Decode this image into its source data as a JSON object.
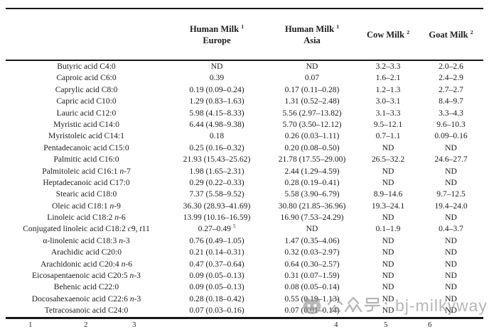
{
  "table": {
    "header": [
      {
        "name": "fatty-acid",
        "lines": []
      },
      {
        "name": "human-milk-europe",
        "lines": [
          "Human Milk ^1^",
          "Europe"
        ]
      },
      {
        "name": "human-milk-asia",
        "lines": [
          "Human Milk ^1^",
          "Asia"
        ]
      },
      {
        "name": "cow-milk",
        "lines": [
          "Cow Milk ^2^"
        ]
      },
      {
        "name": "goat-milk",
        "lines": [
          "Goat Milk ^2^"
        ]
      }
    ],
    "rows": [
      [
        "Butyric acid C4:0",
        "ND",
        "ND",
        "3.2–3.3",
        "2.0–2.6"
      ],
      [
        "Caproic acid C6:0",
        "0.39",
        "0.07",
        "1.6–2.1",
        "2.4–2.9"
      ],
      [
        "Caprylic acid C8:0",
        "0.19 (0.09–0.24)",
        "0.17 (0.11–0.28)",
        "1.2–1.3",
        "2.7–2.7"
      ],
      [
        "Capric acid C10:0",
        "1.29 (0.83–1.63)",
        "1.31 (0.52–2.48)",
        "3.0–3.1",
        "8.4–9.7"
      ],
      [
        "Lauric acid C12:0",
        "5.98 (4.15–8.33)",
        "5.56 (2.97–13.82)",
        "3.1–3.3",
        "3.3–4.3"
      ],
      [
        "Myristic acid C14:0",
        "6.44 (4.98–9.38)",
        "5.70 (3.50–12.12)",
        "9.5–12.1",
        "9.6–10.3"
      ],
      [
        "Myristoleic acid C14:1",
        "0.18",
        "0.26 (0.03–1.11)",
        "0.7–1.1",
        "0.09–0.16"
      ],
      [
        "Pentadecanoic acid C15:0",
        "0.25 (0.16–0.32)",
        "0.20 (0.08–0.50)",
        "ND",
        "ND"
      ],
      [
        "Palmitic acid C16:0",
        "21.93 (15.43–25.62)",
        "21.78 (17.55–29.00)",
        "26.5–32.2",
        "24.6–27.7"
      ],
      [
        "Palmitoleic acid C16:1 *n*-7",
        "1.98 (1.65–2.31)",
        "2.44 (1.29–4.59)",
        "ND",
        "ND"
      ],
      [
        "Heptadecanoic acid C17:0",
        "0.29 (0.22–0.33)",
        "0.28 (0.19–0.41)",
        "ND",
        "ND"
      ],
      [
        "Stearic acid C18:0",
        "7.37 (5.58–9.52)",
        "5.58 (3.90–6.79)",
        "8.9–14.6",
        "9.7–12.5"
      ],
      [
        "Oleic acid C18:1 *n*-9",
        "36.30 (28.93–41.69)",
        "30.80 (21.85–36.96)",
        "19.3–24.1",
        "19.4–24.0"
      ],
      [
        "Linoleic acid C18:2 *n*-6",
        "13.99 (10.16–16.59)",
        "16.90 (7.53–24.29)",
        "ND",
        "ND"
      ],
      [
        "Conjugated linoleic acid C18:2 *c*9, *t*11",
        "0.27–0.49 ^5^",
        "ND",
        "0.1–1.9",
        "0.4–3.7"
      ],
      [
        "α-linolenic acid C18:3 *n*-3",
        "0.76 (0.49–1.05)",
        "1.47 (0.35–4.06)",
        "ND",
        "ND"
      ],
      [
        "Arachidic acid C20:0",
        "0.21 (0.14–0.31)",
        "0.32 (0.03–2.97)",
        "ND",
        "ND"
      ],
      [
        "Arachidonic acid C20:4 *n*-6",
        "0.47 (0.37–0.64)",
        "0.64 (0.30–2.57)",
        "ND",
        "ND"
      ],
      [
        "Eicosapentaenoic acid C20:5 *n*-3",
        "0.09 (0.05–0.13)",
        "0.31 (0.07–1.59)",
        "ND",
        "ND"
      ],
      [
        "Behenic acid C22:0",
        "0.09 (0.05–0.13)",
        "0.08 (0.05–0.14)",
        "ND",
        "ND"
      ],
      [
        "Docosahexaenoic acid C22:6 *n*-3",
        "0.28 (0.18–0.42)",
        "0.55 (0.19–1.13)",
        "ND",
        "ND"
      ],
      [
        "Tetracosanoic acid C24:0",
        "0.07 (0.03–0.16)",
        "0.07 (0.01–0.14)",
        "ND",
        "ND"
      ]
    ],
    "nd_label": "ND"
  },
  "watermark": {
    "icon": "panda-logo-icon",
    "label_cn": "公众号：",
    "label_latin": "bj-milkyway",
    "color": "#8a8a8a"
  },
  "footnote": {
    "markers": [
      "1",
      "2",
      "3",
      "4",
      "5",
      "6"
    ]
  }
}
